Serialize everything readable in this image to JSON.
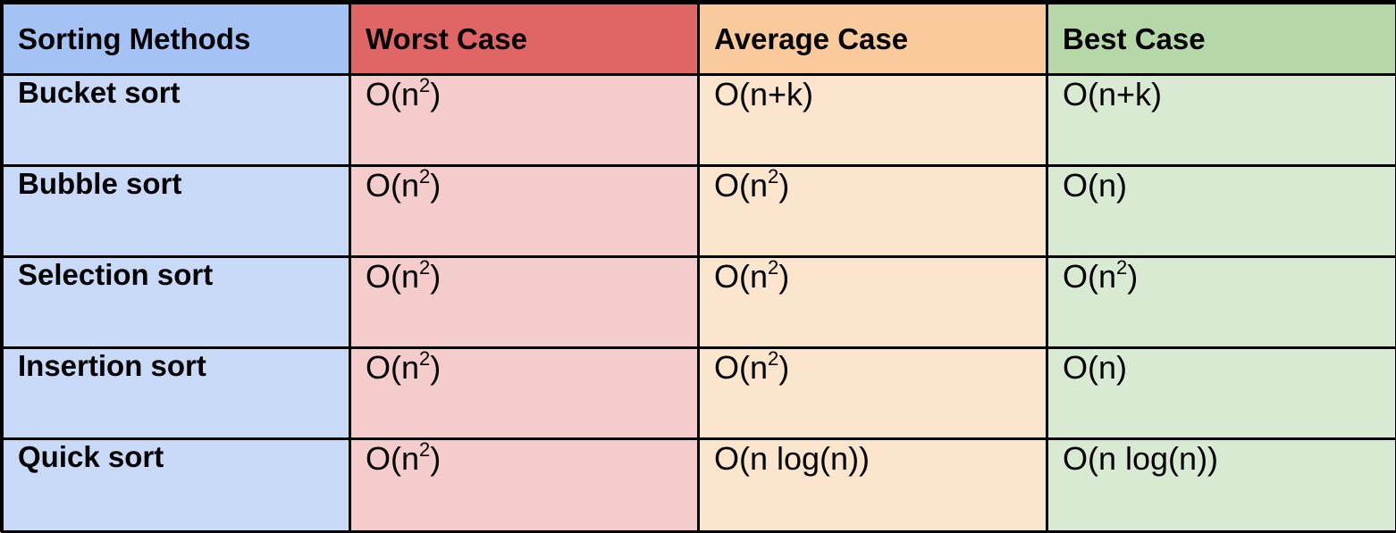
{
  "columns": {
    "method": "Sorting Methods",
    "worst": "Worst Case",
    "average": "Average Case",
    "best": "Best Case"
  },
  "colors": {
    "method_header": "#a4c2f4",
    "method_cell": "#c9daf8",
    "worst_header": "#e06666",
    "worst_cell": "#f4cccc",
    "average_header": "#f9cb9c",
    "average_cell": "#fce5cd",
    "best_header": "#b6d7a8",
    "best_cell": "#d9ead3",
    "border": "#000000"
  },
  "rows": [
    {
      "method": "Bucket sort",
      "worst": {
        "base": "O(n",
        "sup": "2",
        "tail": ")"
      },
      "average": {
        "base": "O(n+k)",
        "sup": "",
        "tail": ""
      },
      "best": {
        "base": "O(n+k)",
        "sup": "",
        "tail": ""
      }
    },
    {
      "method": "Bubble sort",
      "worst": {
        "base": "O(n",
        "sup": "2",
        "tail": ")"
      },
      "average": {
        "base": "O(n",
        "sup": "2",
        "tail": ")"
      },
      "best": {
        "base": "O(n)",
        "sup": "",
        "tail": ""
      }
    },
    {
      "method": "Selection sort",
      "worst": {
        "base": "O(n",
        "sup": "2",
        "tail": ")"
      },
      "average": {
        "base": "O(n",
        "sup": "2",
        "tail": ")"
      },
      "best": {
        "base": "O(n",
        "sup": "2",
        "tail": ")"
      }
    },
    {
      "method": "Insertion sort",
      "worst": {
        "base": "O(n",
        "sup": "2",
        "tail": ")"
      },
      "average": {
        "base": "O(n",
        "sup": "2",
        "tail": ")"
      },
      "best": {
        "base": "O(n)",
        "sup": "",
        "tail": ""
      }
    },
    {
      "method": "Quick sort",
      "worst": {
        "base": "O(n",
        "sup": "2",
        "tail": ")"
      },
      "average": {
        "base": "O(n log(n))",
        "sup": "",
        "tail": ""
      },
      "best": {
        "base": "O(n log(n))",
        "sup": "",
        "tail": ""
      }
    }
  ]
}
